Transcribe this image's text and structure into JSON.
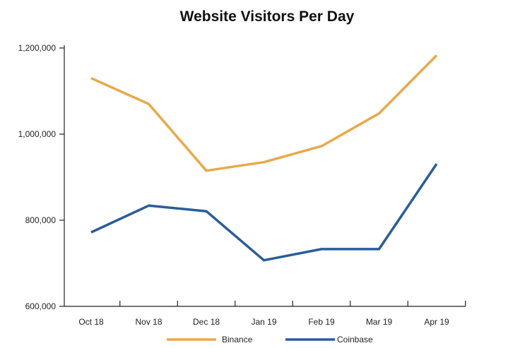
{
  "chart_data": {
    "type": "line",
    "title": "Website Visitors Per Day",
    "xlabel": "",
    "ylabel": "",
    "categories": [
      "Oct 18",
      "Nov 18",
      "Dec 18",
      "Jan 19",
      "Feb 19",
      "Mar 19",
      "Apr 19"
    ],
    "ylim": [
      600000,
      1200000
    ],
    "yticks": [
      600000,
      800000,
      1000000,
      1200000
    ],
    "ytick_labels": [
      "600,000",
      "800,000",
      "1,000,000",
      "1,200,000"
    ],
    "grid": false,
    "legend_position": "bottom-center",
    "series": [
      {
        "name": "Binance",
        "color": "#E8A94A",
        "values": [
          1130000,
          1070000,
          915000,
          935000,
          972000,
          1048000,
          1183000
        ]
      },
      {
        "name": "Coinbase",
        "color": "#2A5C9A",
        "values": [
          772000,
          834000,
          821000,
          707000,
          733000,
          733000,
          931000
        ]
      }
    ]
  }
}
